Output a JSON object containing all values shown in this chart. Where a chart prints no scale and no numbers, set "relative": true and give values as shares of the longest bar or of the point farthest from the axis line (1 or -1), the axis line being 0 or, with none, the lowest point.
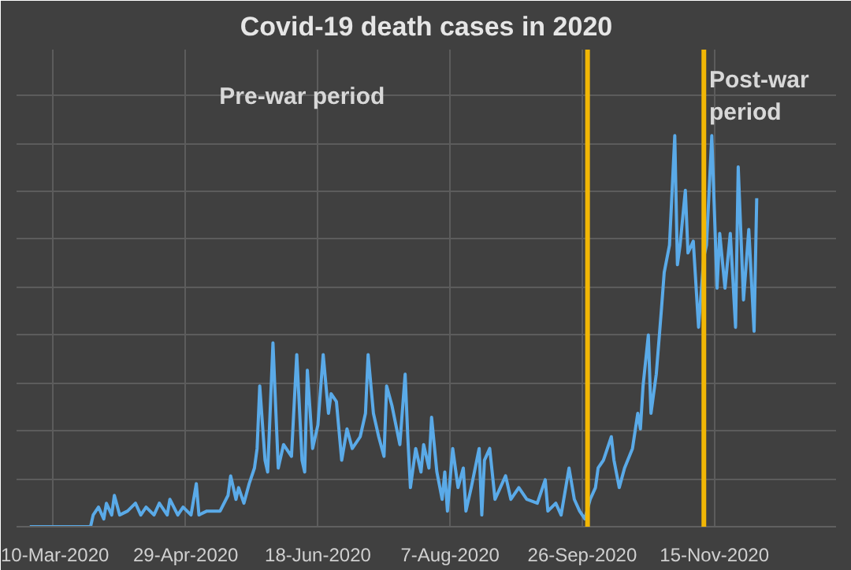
{
  "chart_data": {
    "type": "line",
    "title": "Covid-19 death cases in 2020",
    "relative": true,
    "grid": true,
    "annotations": [
      "Pre-war period",
      "Post-war period"
    ],
    "xlim": [
      "2020-02-25",
      "2020-12-31"
    ],
    "xticks": [
      {
        "value": "2020-03-10",
        "label": "10-Mar-2020"
      },
      {
        "value": "2020-04-29",
        "label": "29-Apr-2020"
      },
      {
        "value": "2020-06-18",
        "label": "18-Jun-2020"
      },
      {
        "value": "2020-08-07",
        "label": "7-Aug-2020"
      },
      {
        "value": "2020-09-26",
        "label": "26-Sep-2020"
      },
      {
        "value": "2020-11-15",
        "label": "15-Nov-2020"
      }
    ],
    "ref_lines": [
      {
        "axis": "x",
        "value": "2020-09-28",
        "color": "#f2b705"
      },
      {
        "axis": "x",
        "value": "2020-11-11",
        "color": "#f2b705"
      }
    ],
    "x": [
      "2020-03-01",
      "2020-03-24",
      "2020-03-25",
      "2020-03-27",
      "2020-03-29",
      "2020-03-30",
      "2020-04-01",
      "2020-04-02",
      "2020-04-04",
      "2020-04-07",
      "2020-04-10",
      "2020-04-12",
      "2020-04-14",
      "2020-04-17",
      "2020-04-19",
      "2020-04-22",
      "2020-04-23",
      "2020-04-26",
      "2020-04-28",
      "2020-05-01",
      "2020-05-03",
      "2020-05-04",
      "2020-05-07",
      "2020-05-12",
      "2020-05-15",
      "2020-05-16",
      "2020-05-18",
      "2020-05-19",
      "2020-05-21",
      "2020-05-23",
      "2020-05-25",
      "2020-05-26",
      "2020-05-27",
      "2020-05-29",
      "2020-05-30",
      "2020-06-01",
      "2020-06-03",
      "2020-06-05",
      "2020-06-08",
      "2020-06-10",
      "2020-06-12",
      "2020-06-13",
      "2020-06-14",
      "2020-06-16",
      "2020-06-18",
      "2020-06-20",
      "2020-06-22",
      "2020-06-23",
      "2020-06-25",
      "2020-06-27",
      "2020-06-29",
      "2020-07-01",
      "2020-07-04",
      "2020-07-06",
      "2020-07-07",
      "2020-07-09",
      "2020-07-11",
      "2020-07-13",
      "2020-07-14",
      "2020-07-16",
      "2020-07-19",
      "2020-07-21",
      "2020-07-22",
      "2020-07-23",
      "2020-07-25",
      "2020-07-27",
      "2020-07-28",
      "2020-07-30",
      "2020-07-31",
      "2020-08-02",
      "2020-08-04",
      "2020-08-05",
      "2020-08-06",
      "2020-08-08",
      "2020-08-10",
      "2020-08-12",
      "2020-08-13",
      "2020-08-15",
      "2020-08-18",
      "2020-08-19",
      "2020-08-20",
      "2020-08-22",
      "2020-08-24",
      "2020-08-26",
      "2020-08-28",
      "2020-08-30",
      "2020-09-02",
      "2020-09-05",
      "2020-09-09",
      "2020-09-12",
      "2020-09-13",
      "2020-09-16",
      "2020-09-18",
      "2020-09-21",
      "2020-09-23",
      "2020-09-25",
      "2020-09-27",
      "2020-09-29",
      "2020-10-01",
      "2020-10-02",
      "2020-10-04",
      "2020-10-07",
      "2020-10-08",
      "2020-10-10",
      "2020-10-12",
      "2020-10-15",
      "2020-10-17",
      "2020-10-18",
      "2020-10-19",
      "2020-10-21",
      "2020-10-22",
      "2020-10-24",
      "2020-10-26",
      "2020-10-27",
      "2020-10-29",
      "2020-10-31",
      "2020-11-01",
      "2020-11-02",
      "2020-11-04",
      "2020-11-05",
      "2020-11-07",
      "2020-11-09",
      "2020-11-11",
      "2020-11-12",
      "2020-11-14",
      "2020-11-16",
      "2020-11-17",
      "2020-11-19",
      "2020-11-21",
      "2020-11-23",
      "2020-11-24",
      "2020-11-26",
      "2020-11-28",
      "2020-11-30",
      "2020-12-01"
    ],
    "series": [
      {
        "color": "#5aaae8",
        "values": [
          0,
          0,
          0.03,
          0.05,
          0.02,
          0.06,
          0.03,
          0.08,
          0.03,
          0.04,
          0.06,
          0.03,
          0.05,
          0.03,
          0.06,
          0.03,
          0.07,
          0.03,
          0.05,
          0.03,
          0.11,
          0.03,
          0.04,
          0.04,
          0.08,
          0.13,
          0.07,
          0.1,
          0.06,
          0.11,
          0.15,
          0.2,
          0.36,
          0.17,
          0.14,
          0.47,
          0.15,
          0.21,
          0.18,
          0.44,
          0.17,
          0.14,
          0.4,
          0.2,
          0.26,
          0.44,
          0.29,
          0.34,
          0.32,
          0.17,
          0.25,
          0.2,
          0.23,
          0.29,
          0.44,
          0.29,
          0.23,
          0.18,
          0.36,
          0.31,
          0.21,
          0.39,
          0.23,
          0.1,
          0.2,
          0.14,
          0.21,
          0.15,
          0.28,
          0.14,
          0.07,
          0.14,
          0.04,
          0.2,
          0.1,
          0.15,
          0.04,
          0.1,
          0.2,
          0.03,
          0.17,
          0.2,
          0.07,
          0.1,
          0.13,
          0.07,
          0.1,
          0.07,
          0.06,
          0.12,
          0.04,
          0.06,
          0.03,
          0.15,
          0.07,
          0.04,
          0.02,
          0.07,
          0.1,
          0.15,
          0.17,
          0.23,
          0.17,
          0.1,
          0.15,
          0.2,
          0.29,
          0.25,
          0.36,
          0.49,
          0.29,
          0.39,
          0.56,
          0.65,
          0.72,
          1.0,
          0.67,
          0.72,
          0.86,
          0.7,
          0.73,
          0.51,
          0.69,
          0.72,
          1.0,
          0.61,
          0.75,
          0.61,
          0.75,
          0.51,
          0.92,
          0.58,
          0.76,
          0.5,
          0.84
        ]
      }
    ]
  }
}
